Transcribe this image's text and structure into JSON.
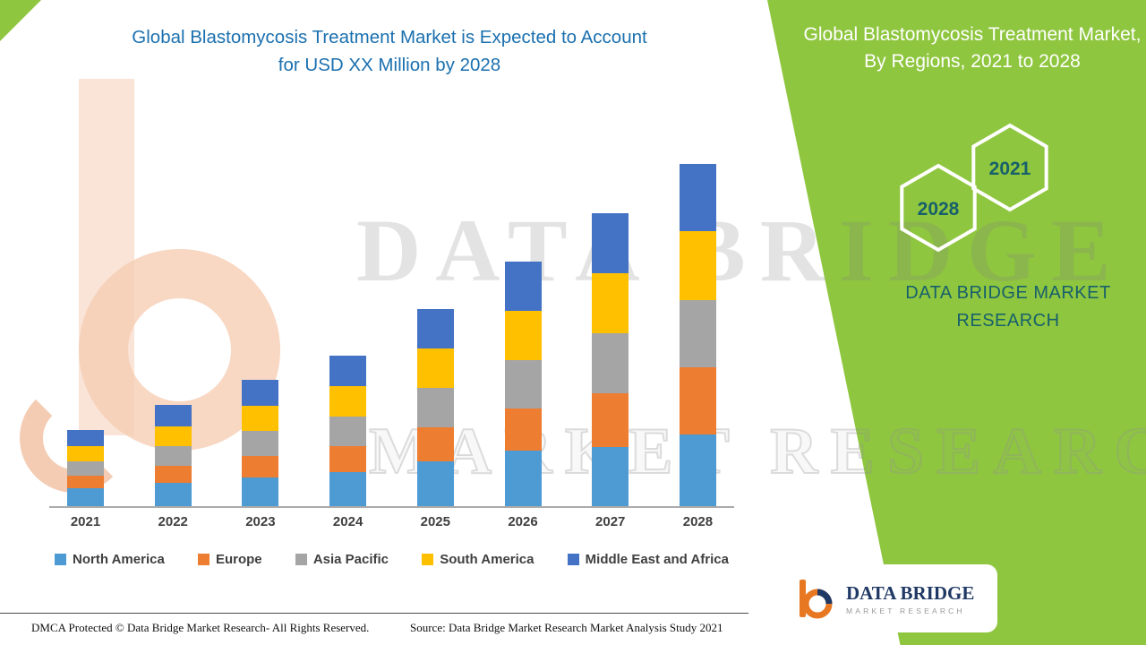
{
  "header": {
    "title_line1": "Global Blastomycosis Treatment Market is Expected to Account",
    "title_line2": "for USD XX Million by 2028"
  },
  "side_panel": {
    "title": "Global Blastomycosis Treatment Market, By Regions, 2021 to 2028",
    "hex_left": "2028",
    "hex_right": "2021",
    "brand": "DATA BRIDGE MARKET RESEARCH",
    "bg_color": "#8FC63F",
    "accent_text_color": "#17606B"
  },
  "watermark": {
    "line1": "DATA BRIDGE",
    "line2": "MARKET RESEARCH"
  },
  "logo": {
    "name": "DATA BRIDGE",
    "subtitle": "MARKET RESEARCH"
  },
  "footer": {
    "dmca": "DMCA Protected © Data Bridge Market Research- All Rights Reserved.",
    "source": "Source: Data Bridge Market Research Market Analysis Study 2021"
  },
  "chart_data": {
    "type": "bar",
    "stacked": true,
    "title": "Global Blastomycosis Treatment Market is Expected to Account for USD XX Million by 2028",
    "xlabel": "",
    "ylabel": "",
    "grid": false,
    "y_axis_visible": false,
    "legend_position": "bottom",
    "note": "No value axis is shown in the figure; segment values are estimated relative units read from bar heights.",
    "categories": [
      "2021",
      "2022",
      "2023",
      "2024",
      "2025",
      "2026",
      "2027",
      "2028"
    ],
    "series": [
      {
        "name": "North America",
        "color": "#4E9BD4",
        "values": [
          20,
          26,
          32,
          38,
          50,
          62,
          66,
          80
        ]
      },
      {
        "name": "Europe",
        "color": "#ED7D31",
        "values": [
          14,
          19,
          24,
          29,
          38,
          47,
          60,
          75
        ]
      },
      {
        "name": "Asia Pacific",
        "color": "#A5A5A5",
        "values": [
          16,
          22,
          28,
          33,
          44,
          54,
          67,
          75
        ]
      },
      {
        "name": "South America",
        "color": "#FFC000",
        "values": [
          17,
          22,
          28,
          34,
          44,
          55,
          67,
          77
        ]
      },
      {
        "name": "Middle East and Africa",
        "color": "#4472C4",
        "values": [
          18,
          24,
          29,
          34,
          44,
          55,
          67,
          75
        ]
      }
    ]
  }
}
